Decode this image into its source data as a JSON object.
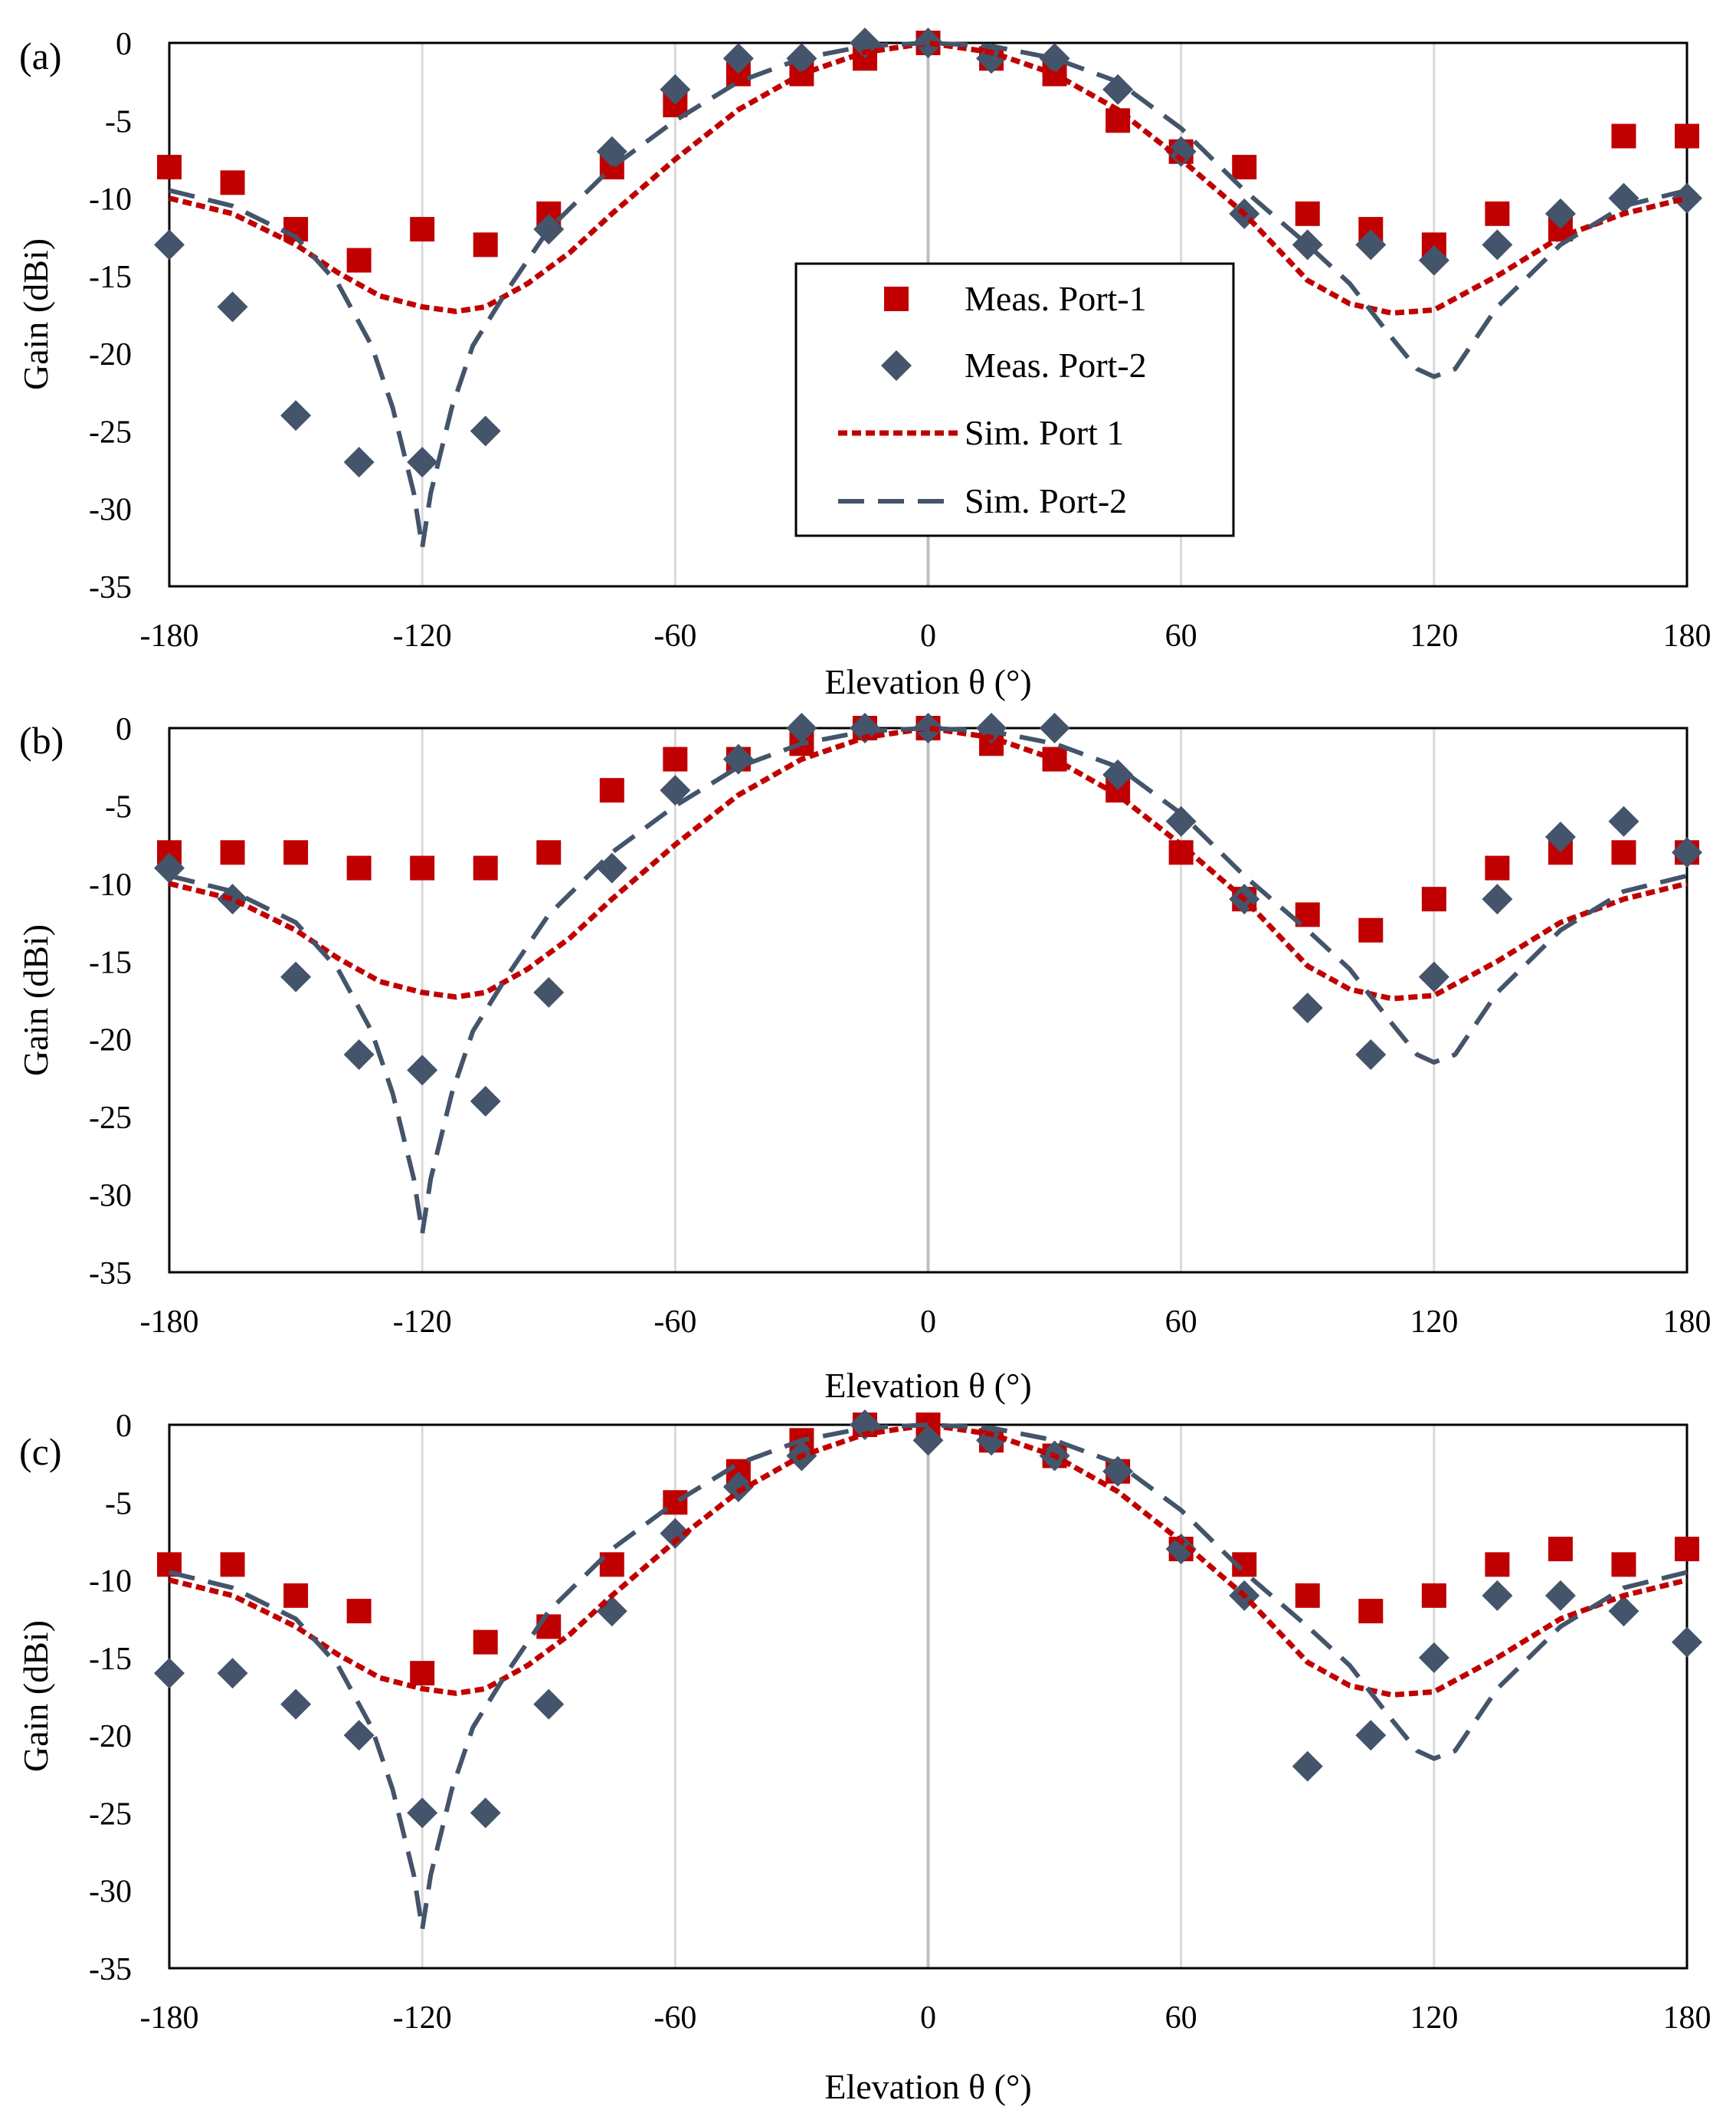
{
  "colors": {
    "meas_port1": "#c00000",
    "meas_port2": "#44546a",
    "sim_port1": "#c00000",
    "sim_port2": "#44546a",
    "grid": "#d9d9d9",
    "zero_line": "#bfbfbf",
    "frame": "#000000"
  },
  "legend": {
    "meas_port1": "Meas. Port-1",
    "meas_port2": "Meas. Port-2",
    "sim_port1": "Sim. Port 1",
    "sim_port2": "Sim. Port-2"
  },
  "chart_data": [
    {
      "type": "scatter",
      "panel_label": "(a)",
      "xlabel": "Elevation θ (°)",
      "ylabel": "Gain (dBi)",
      "xlim": [
        -180,
        180
      ],
      "ylim": [
        -35,
        0
      ],
      "xticks": [
        "-180",
        "-120",
        "-60",
        "0",
        "60",
        "120",
        "180"
      ],
      "yticks": [
        "0",
        "-5",
        "-10",
        "-15",
        "-20",
        "-25",
        "-30",
        "-35"
      ],
      "grid": "vertical",
      "legend_position": "center",
      "series": [
        {
          "name": "Meas. Port-1",
          "kind": "marker-square",
          "x": [
            -180,
            -165,
            -150,
            -135,
            -120,
            -105,
            -90,
            -75,
            -60,
            -45,
            -30,
            -15,
            0,
            15,
            30,
            45,
            60,
            75,
            90,
            105,
            120,
            135,
            150,
            165,
            180
          ],
          "y": [
            -8,
            -9,
            -12,
            -14,
            -12,
            -13,
            -11,
            -8,
            -4,
            -2,
            -2,
            -1,
            0,
            -1,
            -2,
            -5,
            -7,
            -8,
            -11,
            -12,
            -13,
            -11,
            -12,
            -6,
            -6
          ]
        },
        {
          "name": "Meas. Port-2",
          "kind": "marker-diamond",
          "x": [
            -180,
            -165,
            -150,
            -135,
            -120,
            -105,
            -90,
            -75,
            -60,
            -45,
            -30,
            -15,
            0,
            15,
            30,
            45,
            60,
            75,
            90,
            105,
            120,
            135,
            150,
            165,
            180
          ],
          "y": [
            -13,
            -17,
            -24,
            -27,
            -27,
            -25,
            -12,
            -7,
            -3,
            -1,
            -1,
            0,
            0,
            -1,
            -1,
            -3,
            -7,
            -11,
            -13,
            -13,
            -14,
            -13,
            -11,
            -10,
            -10
          ]
        },
        {
          "name": "Sim. Port 1",
          "kind": "line-dotted",
          "x": [
            -180,
            -165,
            -150,
            -140,
            -130,
            -120,
            -112,
            -105,
            -95,
            -85,
            -75,
            -60,
            -45,
            -30,
            -15,
            0,
            15,
            30,
            45,
            60,
            75,
            90,
            100,
            110,
            120,
            135,
            150,
            165,
            180
          ],
          "y": [
            -10,
            -11,
            -13,
            -14.8,
            -16.3,
            -17,
            -17.3,
            -17,
            -15.5,
            -13.5,
            -11,
            -7.5,
            -4.3,
            -2,
            -0.6,
            0,
            -0.6,
            -2,
            -4.3,
            -7.5,
            -11,
            -15.3,
            -16.8,
            -17.4,
            -17.2,
            -15,
            -12.5,
            -11,
            -10
          ]
        },
        {
          "name": "Sim. Port-2",
          "kind": "line-dashed",
          "x": [
            -180,
            -165,
            -150,
            -140,
            -132,
            -127,
            -122,
            -120,
            -118,
            -113,
            -108,
            -100,
            -90,
            -75,
            -60,
            -45,
            -30,
            -15,
            0,
            15,
            30,
            45,
            60,
            75,
            90,
            100,
            110,
            116,
            120,
            125,
            135,
            150,
            165,
            180
          ],
          "y": [
            -9.5,
            -10.5,
            -12.5,
            -15.5,
            -19.5,
            -23.5,
            -29,
            -32.5,
            -29,
            -23.5,
            -19.5,
            -16,
            -12,
            -8,
            -5,
            -2.5,
            -1,
            -0.2,
            0,
            -0.2,
            -1,
            -2.5,
            -5.5,
            -9.5,
            -13,
            -15.5,
            -19,
            -21,
            -21.5,
            -21,
            -17,
            -13,
            -10.5,
            -9.5
          ]
        }
      ]
    },
    {
      "type": "scatter",
      "panel_label": "(b)",
      "xlabel": "Elevation θ (°)",
      "ylabel": "Gain (dBi)",
      "xlim": [
        -180,
        180
      ],
      "ylim": [
        -35,
        0
      ],
      "xticks": [
        "-180",
        "-120",
        "-60",
        "0",
        "60",
        "120",
        "180"
      ],
      "yticks": [
        "0",
        "-5",
        "-10",
        "-15",
        "-20",
        "-25",
        "-30",
        "-35"
      ],
      "grid": "vertical",
      "series": [
        {
          "name": "Meas. Port-1",
          "kind": "marker-square",
          "x": [
            -180,
            -165,
            -150,
            -135,
            -120,
            -105,
            -90,
            -75,
            -60,
            -45,
            -30,
            -15,
            0,
            15,
            30,
            45,
            60,
            75,
            90,
            105,
            120,
            135,
            150,
            165,
            180
          ],
          "y": [
            -8,
            -8,
            -8,
            -9,
            -9,
            -9,
            -8,
            -4,
            -2,
            -2,
            -1,
            0,
            0,
            -1,
            -2,
            -4,
            -8,
            -11,
            -12,
            -13,
            -11,
            -9,
            -8,
            -8,
            -8
          ]
        },
        {
          "name": "Meas. Port-2",
          "kind": "marker-diamond",
          "x": [
            -180,
            -165,
            -150,
            -135,
            -120,
            -105,
            -90,
            -75,
            -60,
            -45,
            -30,
            -15,
            0,
            15,
            30,
            45,
            60,
            75,
            90,
            105,
            120,
            135,
            150,
            165,
            180
          ],
          "y": [
            -9,
            -11,
            -16,
            -21,
            -22,
            -24,
            -17,
            -9,
            -4,
            -2,
            0,
            0,
            0,
            0,
            0,
            -3,
            -6,
            -11,
            -18,
            -21,
            -16,
            -11,
            -7,
            -6,
            -8
          ]
        },
        {
          "name": "Sim. Port 1",
          "kind": "line-dotted",
          "x": [
            -180,
            -165,
            -150,
            -140,
            -130,
            -120,
            -112,
            -105,
            -95,
            -85,
            -75,
            -60,
            -45,
            -30,
            -15,
            0,
            15,
            30,
            45,
            60,
            75,
            90,
            100,
            110,
            120,
            135,
            150,
            165,
            180
          ],
          "y": [
            -10,
            -11,
            -13,
            -14.8,
            -16.3,
            -17,
            -17.3,
            -17,
            -15.5,
            -13.5,
            -11,
            -7.5,
            -4.3,
            -2,
            -0.6,
            0,
            -0.6,
            -2,
            -4.3,
            -7.5,
            -11,
            -15.3,
            -16.8,
            -17.4,
            -17.2,
            -15,
            -12.5,
            -11,
            -10
          ]
        },
        {
          "name": "Sim. Port-2",
          "kind": "line-dashed",
          "x": [
            -180,
            -165,
            -150,
            -140,
            -132,
            -127,
            -122,
            -120,
            -118,
            -113,
            -108,
            -100,
            -90,
            -75,
            -60,
            -45,
            -30,
            -15,
            0,
            15,
            30,
            45,
            60,
            75,
            90,
            100,
            110,
            116,
            120,
            125,
            135,
            150,
            165,
            180
          ],
          "y": [
            -9.5,
            -10.5,
            -12.5,
            -15.5,
            -19.5,
            -23.5,
            -29,
            -32.5,
            -29,
            -23.5,
            -19.5,
            -16,
            -12,
            -8,
            -5,
            -2.5,
            -1,
            -0.2,
            0,
            -0.2,
            -1,
            -2.5,
            -5.5,
            -9.5,
            -13,
            -15.5,
            -19,
            -21,
            -21.5,
            -21,
            -17,
            -13,
            -10.5,
            -9.5
          ]
        }
      ]
    },
    {
      "type": "scatter",
      "panel_label": "(c)",
      "xlabel": "Elevation θ (°)",
      "ylabel": "Gain (dBi)",
      "xlim": [
        -180,
        180
      ],
      "ylim": [
        -35,
        0
      ],
      "xticks": [
        "-180",
        "-120",
        "-60",
        "0",
        "60",
        "120",
        "180"
      ],
      "yticks": [
        "0",
        "-5",
        "-10",
        "-15",
        "-20",
        "-25",
        "-30",
        "-35"
      ],
      "grid": "vertical",
      "series": [
        {
          "name": "Meas. Port-1",
          "kind": "marker-square",
          "x": [
            -180,
            -165,
            -150,
            -135,
            -120,
            -105,
            -90,
            -75,
            -60,
            -45,
            -30,
            -15,
            0,
            15,
            30,
            45,
            60,
            75,
            90,
            105,
            120,
            135,
            150,
            165,
            180
          ],
          "y": [
            -9,
            -9,
            -11,
            -12,
            -16,
            -14,
            -13,
            -9,
            -5,
            -3,
            -1,
            0,
            0,
            -1,
            -2,
            -3,
            -8,
            -9,
            -11,
            -12,
            -11,
            -9,
            -8,
            -9,
            -8
          ]
        },
        {
          "name": "Meas. Port-2",
          "kind": "marker-diamond",
          "x": [
            -180,
            -165,
            -150,
            -135,
            -120,
            -105,
            -90,
            -75,
            -60,
            -45,
            -30,
            -15,
            0,
            15,
            30,
            45,
            60,
            75,
            90,
            105,
            120,
            135,
            150,
            165,
            180
          ],
          "y": [
            -16,
            -16,
            -18,
            -20,
            -25,
            -25,
            -18,
            -12,
            -7,
            -4,
            -2,
            0,
            -1,
            -1,
            -2,
            -3,
            -8,
            -11,
            -22,
            -20,
            -15,
            -11,
            -11,
            -12,
            -14
          ]
        },
        {
          "name": "Sim. Port 1",
          "kind": "line-dotted",
          "x": [
            -180,
            -165,
            -150,
            -140,
            -130,
            -120,
            -112,
            -105,
            -95,
            -85,
            -75,
            -60,
            -45,
            -30,
            -15,
            0,
            15,
            30,
            45,
            60,
            75,
            90,
            100,
            110,
            120,
            135,
            150,
            165,
            180
          ],
          "y": [
            -10,
            -11,
            -13,
            -14.8,
            -16.3,
            -17,
            -17.3,
            -17,
            -15.5,
            -13.5,
            -11,
            -7.5,
            -4.3,
            -2,
            -0.6,
            0,
            -0.6,
            -2,
            -4.3,
            -7.5,
            -11,
            -15.3,
            -16.8,
            -17.4,
            -17.2,
            -15,
            -12.5,
            -11,
            -10
          ]
        },
        {
          "name": "Sim. Port-2",
          "kind": "line-dashed",
          "x": [
            -180,
            -165,
            -150,
            -140,
            -132,
            -127,
            -122,
            -120,
            -118,
            -113,
            -108,
            -100,
            -90,
            -75,
            -60,
            -45,
            -30,
            -15,
            0,
            15,
            30,
            45,
            60,
            75,
            90,
            100,
            110,
            116,
            120,
            125,
            135,
            150,
            165,
            180
          ],
          "y": [
            -9.5,
            -10.5,
            -12.5,
            -15.5,
            -19.5,
            -23.5,
            -29,
            -32.5,
            -29,
            -23.5,
            -19.5,
            -16,
            -12,
            -8,
            -5,
            -2.5,
            -1,
            -0.2,
            0,
            -0.2,
            -1,
            -2.5,
            -5.5,
            -9.5,
            -13,
            -15.5,
            -19,
            -21,
            -21.5,
            -21,
            -17,
            -13,
            -10.5,
            -9.5
          ]
        }
      ]
    }
  ]
}
